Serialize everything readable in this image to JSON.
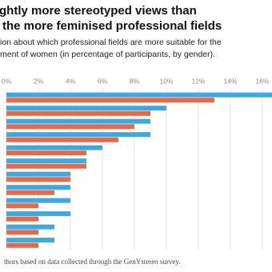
{
  "chart_data": {
    "type": "hbar",
    "title": [
      "ghtly more stereotyped views than",
      "the more feminised professional fields"
    ],
    "subtitle": [
      "ion about which professional fields are more suitable for the",
      "ment of women (in percentage of participants, by gender)."
    ],
    "source": "thors based on data collected through the GenYstereo survey.",
    "categories": [
      null,
      null,
      null,
      null,
      null,
      null,
      null,
      null,
      null,
      null,
      null,
      null
    ],
    "series": [
      {
        "color": "#3fa9dd",
        "values": [
          17,
          10,
          9,
          9,
          6,
          5,
          4,
          4,
          4,
          4,
          3,
          3
        ]
      },
      {
        "color": "#e8694a",
        "values": [
          13,
          9,
          8,
          7,
          5,
          5,
          4,
          3,
          2,
          2,
          2,
          2
        ]
      }
    ],
    "xlim": [
      0,
      16.6
    ],
    "xticks": [
      {
        "value": 0,
        "label": "0%"
      },
      {
        "value": 2,
        "label": "2%"
      },
      {
        "value": 4,
        "label": "4%"
      },
      {
        "value": 6,
        "label": "6%"
      },
      {
        "value": 8,
        "label": "8%"
      },
      {
        "value": 10,
        "label": "10%"
      },
      {
        "value": 12,
        "label": "12%"
      },
      {
        "value": 14,
        "label": "14%"
      },
      {
        "value": 16,
        "label": "16%"
      }
    ],
    "grid": true
  }
}
